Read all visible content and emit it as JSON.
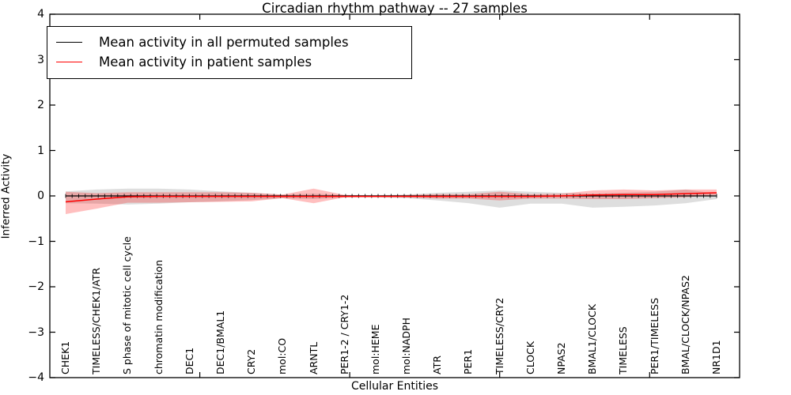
{
  "chart_data": {
    "type": "line",
    "title": "Circadian rhythm pathway -- 27 samples",
    "xlabel": "Cellular Entities",
    "ylabel": "Inferred Activity",
    "ylim": [
      -4,
      4
    ],
    "xlim": [
      0,
      23
    ],
    "yticks": [
      4,
      3,
      2,
      1,
      0,
      -1,
      -2,
      -3,
      -4
    ],
    "ytick_labels": [
      "4",
      "3",
      "2",
      "1",
      "0",
      "−1",
      "−2",
      "−3",
      "−4"
    ],
    "xticks_unlabeled": [
      5,
      10,
      15,
      20
    ],
    "grid": false,
    "legend_position": "upper left",
    "categories": [
      "CHEK1",
      "TIMELESS/CHEK1/ATR",
      "S phase of mitotic cell cycle",
      "chromatin modification",
      "DEC1",
      "DEC1/BMAL1",
      "CRY2",
      "mol:CO",
      "ARNTL",
      "PER1-2 / CRY1-2",
      "mol:HEME",
      "mol:NADPH",
      "ATR",
      "PER1",
      "TIMELESS/CRY2",
      "CLOCK",
      "NPAS2",
      "BMAL1/CLOCK",
      "TIMELESS",
      "PER1/TIMELESS",
      "BMAL/CLOCK/NPAS2",
      "NR1D1"
    ],
    "series": [
      {
        "name": "Mean activity in all permuted samples",
        "color": "#000000",
        "band_color": "rgba(0,0,0,0.13)",
        "values": [
          0,
          0,
          0,
          0,
          0,
          0,
          0,
          0,
          0,
          0,
          0,
          0,
          0,
          0,
          0,
          0,
          0,
          0,
          0,
          0,
          0,
          0
        ],
        "band_upper": [
          0.1,
          0.14,
          0.16,
          0.16,
          0.14,
          0.1,
          0.07,
          0.03,
          0.05,
          0.02,
          0.02,
          0.03,
          0.07,
          0.09,
          0.12,
          0.09,
          0.07,
          0.05,
          0.07,
          0.09,
          0.14,
          0.05
        ],
        "band_lower": [
          -0.16,
          -0.17,
          -0.19,
          -0.17,
          -0.14,
          -0.12,
          -0.09,
          -0.05,
          -0.07,
          -0.03,
          -0.03,
          -0.05,
          -0.1,
          -0.16,
          -0.26,
          -0.17,
          -0.17,
          -0.26,
          -0.24,
          -0.21,
          -0.16,
          -0.07
        ]
      },
      {
        "name": "Mean activity in patient samples",
        "color": "#ff0000",
        "band_color": "rgba(255,0,0,0.25)",
        "values": [
          -0.13,
          -0.07,
          -0.02,
          -0.01,
          -0.01,
          -0.01,
          -0.01,
          -0.01,
          -0.01,
          -0.01,
          -0.01,
          -0.01,
          -0.01,
          -0.01,
          -0.01,
          -0.01,
          0.0,
          0.02,
          0.03,
          0.03,
          0.05,
          0.07
        ],
        "band_upper": [
          0.09,
          0.06,
          0.08,
          0.08,
          0.08,
          0.08,
          0.07,
          0.03,
          0.16,
          0.02,
          0.01,
          0.02,
          0.04,
          0.04,
          0.09,
          0.04,
          0.05,
          0.12,
          0.14,
          0.12,
          0.14,
          0.14
        ],
        "band_lower": [
          -0.4,
          -0.28,
          -0.15,
          -0.15,
          -0.14,
          -0.13,
          -0.12,
          -0.05,
          -0.16,
          -0.03,
          -0.02,
          -0.03,
          -0.06,
          -0.06,
          -0.1,
          -0.06,
          -0.06,
          -0.07,
          -0.07,
          -0.05,
          -0.03,
          0.02
        ]
      }
    ]
  }
}
